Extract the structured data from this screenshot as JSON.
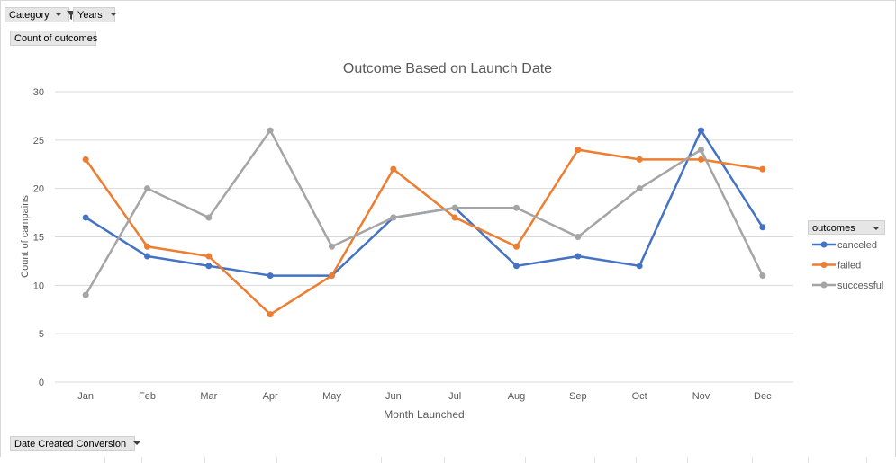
{
  "pivot": {
    "filter_category": "Category",
    "filter_years": "Years",
    "values_field": "Count of outcomes",
    "axis_field": "Date Created Conversion",
    "legend_field": "outcomes"
  },
  "colors": {
    "canceled": "#4472c4",
    "failed": "#ed7d31",
    "successful": "#a5a5a5",
    "grid": "#d9d9d9",
    "text": "#595959"
  },
  "chart_data": {
    "type": "line",
    "title": "Outcome Based on Launch Date",
    "xlabel": "Month Launched",
    "ylabel": "Count of campains",
    "ylim": [
      0,
      30
    ],
    "yticks": [
      0,
      5,
      10,
      15,
      20,
      25,
      30
    ],
    "grid": true,
    "legend_position": "right",
    "categories": [
      "Jan",
      "Feb",
      "Mar",
      "Apr",
      "May",
      "Jun",
      "Jul",
      "Aug",
      "Sep",
      "Oct",
      "Nov",
      "Dec"
    ],
    "series": [
      {
        "name": "canceled",
        "color": "#4472c4",
        "values": [
          17,
          13,
          12,
          11,
          11,
          17,
          18,
          12,
          13,
          12,
          26,
          16
        ]
      },
      {
        "name": "failed",
        "color": "#ed7d31",
        "values": [
          23,
          14,
          13,
          7,
          11,
          22,
          17,
          14,
          24,
          23,
          23,
          22
        ]
      },
      {
        "name": "successful",
        "color": "#a5a5a5",
        "values": [
          9,
          20,
          17,
          26,
          14,
          17,
          18,
          18,
          15,
          20,
          24,
          11
        ]
      }
    ]
  }
}
